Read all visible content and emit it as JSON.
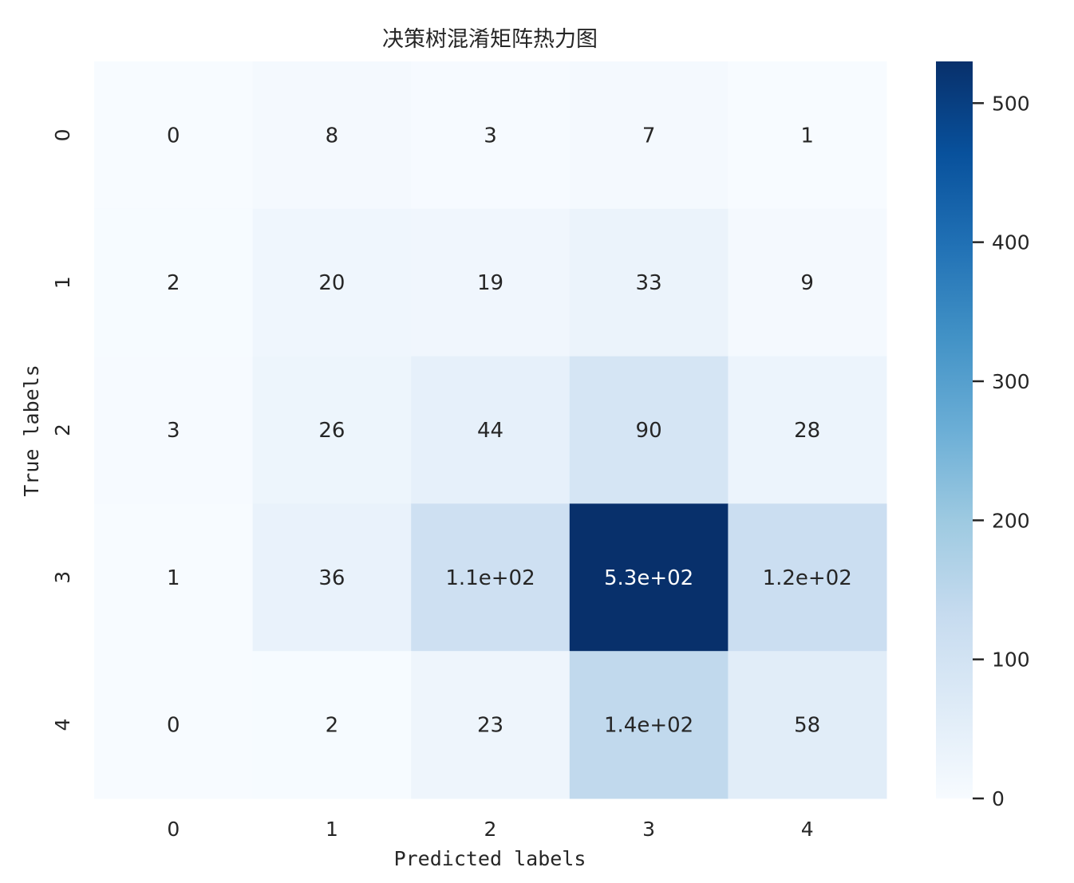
{
  "chart_data": {
    "type": "heatmap",
    "title": "决策树混淆矩阵热力图",
    "xlabel": "Predicted labels",
    "ylabel": "True labels",
    "x_categories": [
      "0",
      "1",
      "2",
      "3",
      "4"
    ],
    "y_categories": [
      "0",
      "1",
      "2",
      "3",
      "4"
    ],
    "values": [
      [
        0,
        8,
        3,
        7,
        1
      ],
      [
        2,
        20,
        19,
        33,
        9
      ],
      [
        3,
        26,
        44,
        90,
        28
      ],
      [
        1,
        36,
        110,
        530,
        120
      ],
      [
        0,
        2,
        23,
        140,
        58
      ]
    ],
    "annotations": [
      [
        "0",
        "8",
        "3",
        "7",
        "1"
      ],
      [
        "2",
        "20",
        "19",
        "33",
        "9"
      ],
      [
        "3",
        "26",
        "44",
        "90",
        "28"
      ],
      [
        "1",
        "36",
        "1.1e+02",
        "5.3e+02",
        "1.2e+02"
      ],
      [
        "0",
        "2",
        "23",
        "1.4e+02",
        "58"
      ]
    ],
    "colormap": "Blues",
    "color_range": [
      0,
      530
    ],
    "colorbar_ticks": [
      0,
      100,
      200,
      300,
      400,
      500
    ],
    "colorbar_tick_labels": [
      "0",
      "100",
      "200",
      "300",
      "400",
      "500"
    ],
    "grid": false,
    "colorbar_placement": "right"
  }
}
